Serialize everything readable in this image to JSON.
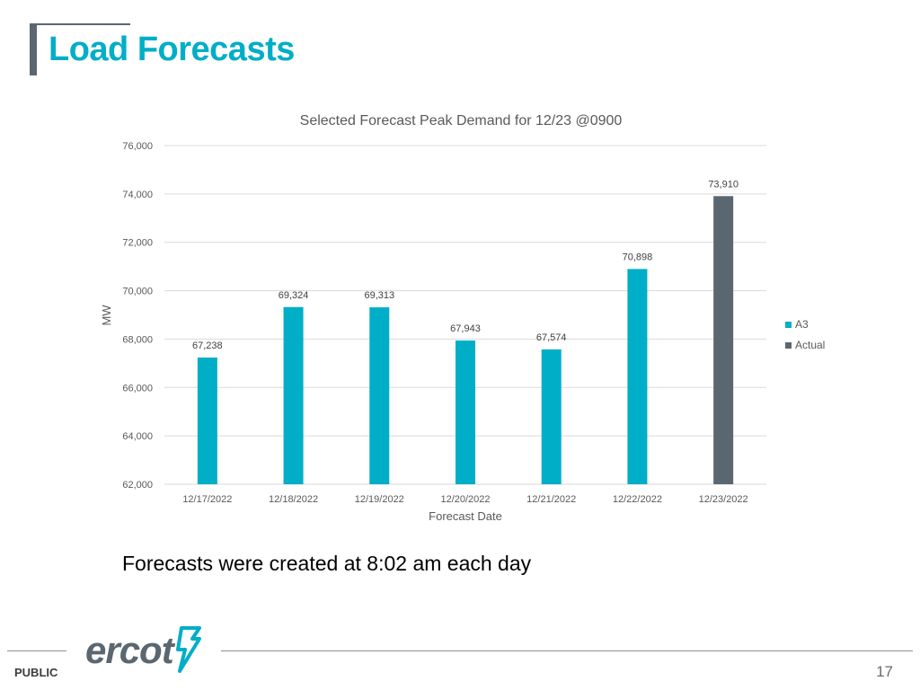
{
  "slide": {
    "title": "Load Forecasts",
    "note": "Forecasts were created at 8:02 am each day",
    "classification": "PUBLIC",
    "page_number": "17",
    "logo_text": "ercot"
  },
  "colors": {
    "title": "#00aec7",
    "a3": "#00aec7",
    "actual": "#5b6770",
    "grid": "#d9d9d9"
  },
  "chart_data": {
    "type": "bar",
    "title": "Selected Forecast Peak Demand for 12/23 @0900",
    "xlabel": "Forecast Date",
    "ylabel": "MW",
    "ylim": [
      62000,
      76000
    ],
    "yticks": [
      62000,
      64000,
      66000,
      68000,
      70000,
      72000,
      74000,
      76000
    ],
    "ytick_labels": [
      "62,000",
      "64,000",
      "66,000",
      "68,000",
      "70,000",
      "72,000",
      "74,000",
      "76,000"
    ],
    "categories": [
      "12/17/2022",
      "12/18/2022",
      "12/19/2022",
      "12/20/2022",
      "12/21/2022",
      "12/22/2022",
      "12/23/2022"
    ],
    "series": [
      {
        "name": "A3",
        "color": "#00aec7",
        "values": [
          67238,
          69324,
          69313,
          67943,
          67574,
          70898,
          null
        ],
        "labels": [
          "67,238",
          "69,324",
          "69,313",
          "67,943",
          "67,574",
          "70,898",
          ""
        ]
      },
      {
        "name": "Actual",
        "color": "#5b6770",
        "values": [
          null,
          null,
          null,
          null,
          null,
          null,
          73910
        ],
        "labels": [
          "",
          "",
          "",
          "",
          "",
          "",
          "73,910"
        ]
      }
    ],
    "grid": true,
    "legend": "right"
  }
}
